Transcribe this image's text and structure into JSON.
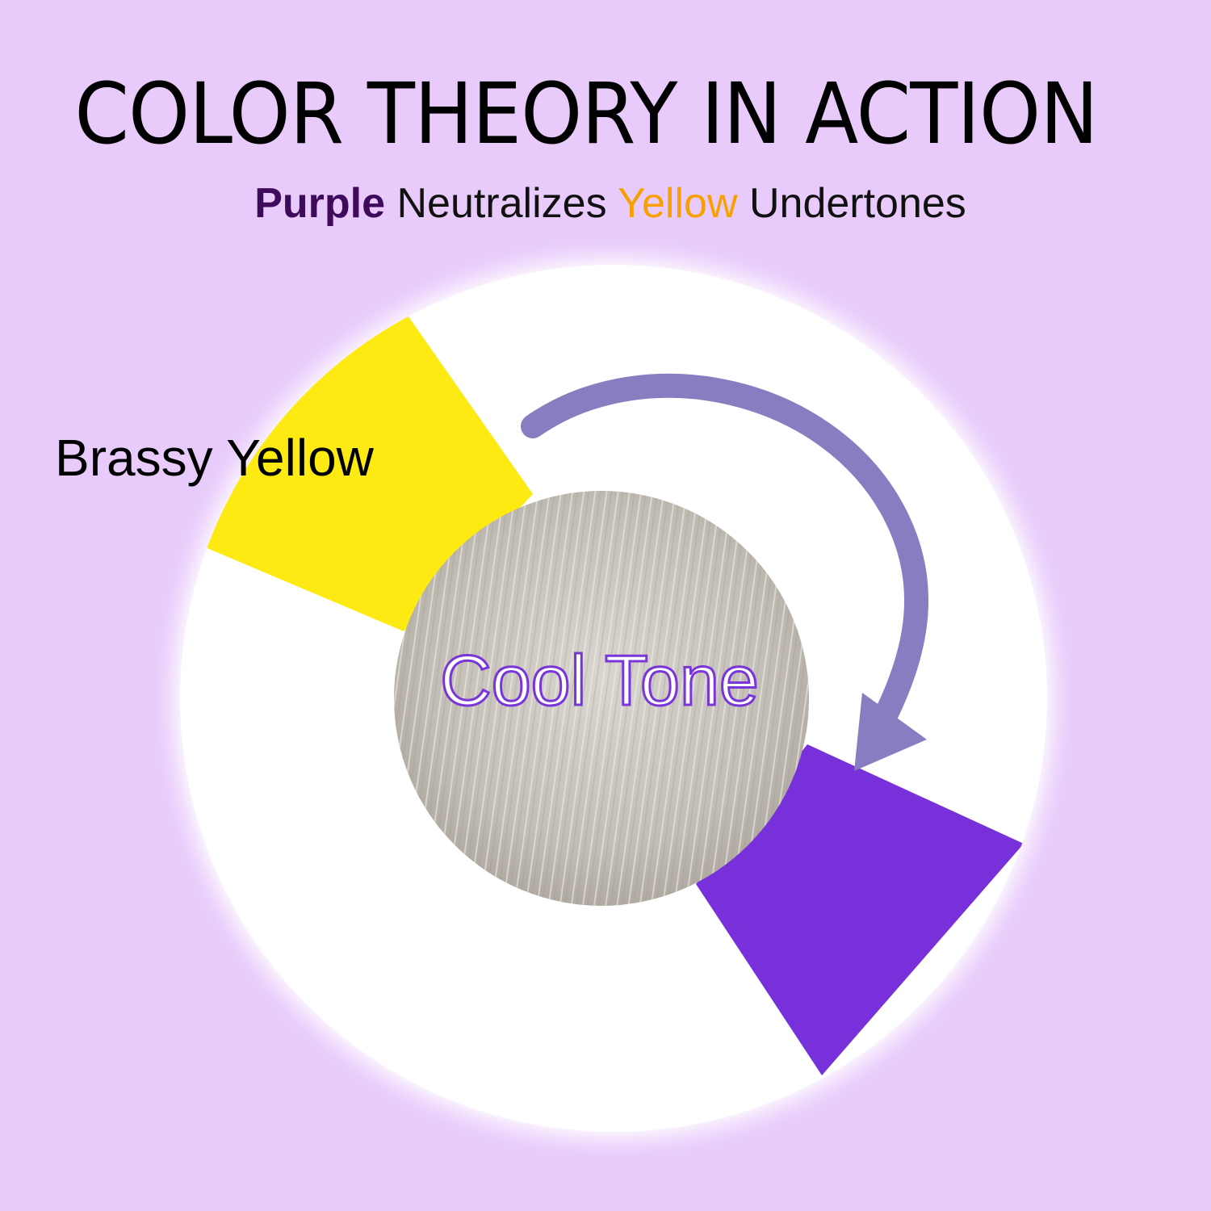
{
  "title": "COLOR THEORY IN ACTION",
  "subtitle": {
    "purple": "Purple",
    "middle": "Neutralizes",
    "yellow": "Yellow",
    "end": "Undertones"
  },
  "labels": {
    "brassy": "Brassy Yellow",
    "cool": "Cool Tone"
  },
  "colors": {
    "background": "#e8cbfb",
    "yellow": "#fdea12",
    "purple": "#7730da",
    "arrow": "#8a7cc0",
    "purple_text": "#3d0a5c",
    "yellow_text": "#f7a100"
  },
  "icons": {
    "arrow": "curved-arrow-icon"
  }
}
